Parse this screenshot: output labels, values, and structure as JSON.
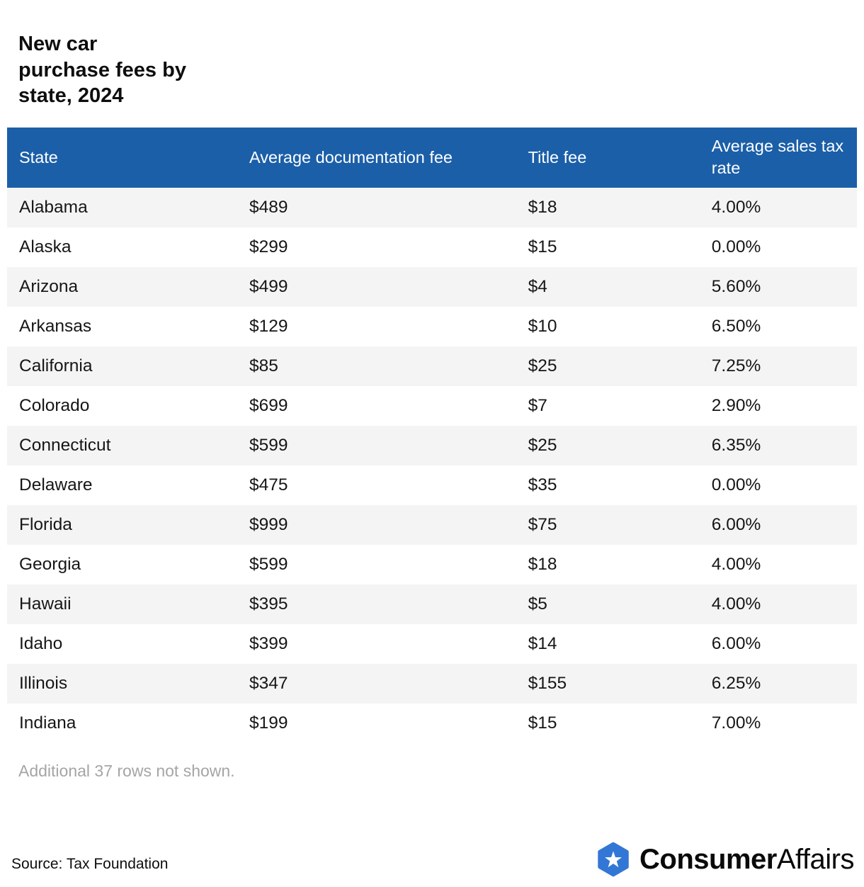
{
  "chart_data": {
    "type": "table",
    "title": "New car purchase fees by state, 2024",
    "title_lines": [
      "New car",
      "purchase fees by",
      "state, 2024"
    ],
    "columns": [
      "State",
      "Average documentation fee",
      "Title fee",
      "Average sales tax rate"
    ],
    "rows": [
      [
        "Alabama",
        "$489",
        "$18",
        "4.00%"
      ],
      [
        "Alaska",
        "$299",
        "$15",
        "0.00%"
      ],
      [
        "Arizona",
        "$499",
        "$4",
        "5.60%"
      ],
      [
        "Arkansas",
        "$129",
        "$10",
        "6.50%"
      ],
      [
        "California",
        "$85",
        "$25",
        "7.25%"
      ],
      [
        "Colorado",
        "$699",
        "$7",
        "2.90%"
      ],
      [
        "Connecticut",
        "$599",
        "$25",
        "6.35%"
      ],
      [
        "Delaware",
        "$475",
        "$35",
        "0.00%"
      ],
      [
        "Florida",
        "$999",
        "$75",
        "6.00%"
      ],
      [
        "Georgia",
        "$599",
        "$18",
        "4.00%"
      ],
      [
        "Hawaii",
        "$395",
        "$5",
        "4.00%"
      ],
      [
        "Idaho",
        "$399",
        "$14",
        "6.00%"
      ],
      [
        "Illinois",
        "$347",
        "$155",
        "6.25%"
      ],
      [
        "Indiana",
        "$199",
        "$15",
        "7.00%"
      ]
    ],
    "note": "Additional 37 rows not shown.",
    "source": "Source: Tax Foundation"
  },
  "logo": {
    "icon": "star-hexagon-icon",
    "text_bold": "Consumer",
    "text_regular": "Affairs"
  },
  "colors": {
    "header_bg": "#1b5fa8",
    "row_alt_bg": "#f4f4f4",
    "note_text": "#a5a5a5",
    "logo_blue": "#3377d6"
  }
}
